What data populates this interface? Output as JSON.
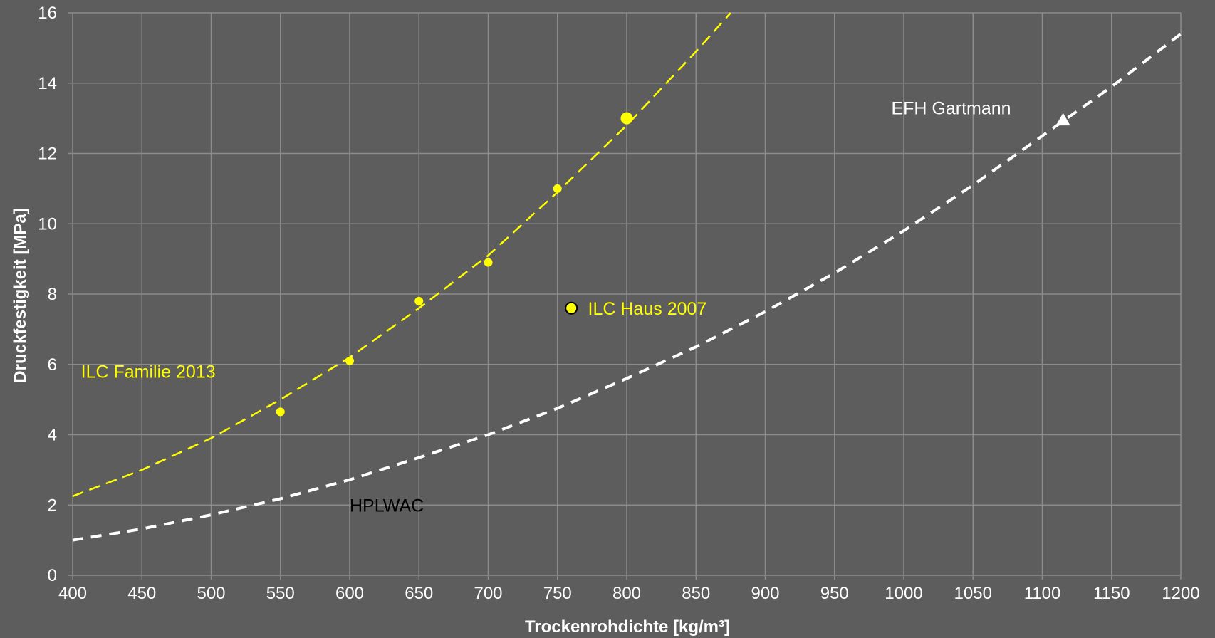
{
  "chart_data": {
    "type": "scatter",
    "title": "",
    "xlabel": "Trockenrohdichte [kg/m³]",
    "ylabel": "Druckfestigkeit [MPa]",
    "xlim": [
      400,
      1200
    ],
    "ylim": [
      0,
      16
    ],
    "xticks": [
      "400",
      "450",
      "500",
      "550",
      "600",
      "650",
      "700",
      "750",
      "800",
      "850",
      "900",
      "950",
      "1000",
      "1050",
      "1100",
      "1150",
      "1200"
    ],
    "yticks": [
      "0",
      "2",
      "4",
      "6",
      "8",
      "10",
      "12",
      "14",
      "16"
    ],
    "grid": true,
    "legend": "none",
    "colors": {
      "background": "#5d5d5d",
      "grid": "#8c8c8c",
      "ilc": "#ffff00",
      "hplwac": "#ffffff"
    },
    "series": [
      {
        "name": "ILC Familie 2013",
        "kind": "points",
        "marker": "circle",
        "points": [
          {
            "x": 550,
            "y": 4.65
          },
          {
            "x": 600,
            "y": 6.1
          },
          {
            "x": 650,
            "y": 7.8
          },
          {
            "x": 700,
            "y": 8.9
          },
          {
            "x": 750,
            "y": 11.0
          },
          {
            "x": 800,
            "y": 13.0
          }
        ]
      },
      {
        "name": "ILC Familie 2013",
        "kind": "trendline",
        "style": "dashed",
        "points": [
          {
            "x": 400,
            "y": 2.25
          },
          {
            "x": 450,
            "y": 3.0
          },
          {
            "x": 500,
            "y": 3.9
          },
          {
            "x": 550,
            "y": 5.0
          },
          {
            "x": 600,
            "y": 6.2
          },
          {
            "x": 650,
            "y": 7.6
          },
          {
            "x": 700,
            "y": 9.1
          },
          {
            "x": 750,
            "y": 10.9
          },
          {
            "x": 800,
            "y": 12.8
          },
          {
            "x": 850,
            "y": 14.9
          },
          {
            "x": 875,
            "y": 16.0
          }
        ]
      },
      {
        "name": "ILC Haus 2007",
        "kind": "points",
        "marker": "circle-outlined",
        "points": [
          {
            "x": 760,
            "y": 7.6
          }
        ]
      },
      {
        "name": "HPLWAC",
        "kind": "trendline",
        "style": "dashed",
        "points": [
          {
            "x": 400,
            "y": 1.0
          },
          {
            "x": 450,
            "y": 1.32
          },
          {
            "x": 500,
            "y": 1.72
          },
          {
            "x": 550,
            "y": 2.18
          },
          {
            "x": 600,
            "y": 2.72
          },
          {
            "x": 650,
            "y": 3.35
          },
          {
            "x": 700,
            "y": 4.0
          },
          {
            "x": 750,
            "y": 4.75
          },
          {
            "x": 800,
            "y": 5.6
          },
          {
            "x": 850,
            "y": 6.5
          },
          {
            "x": 900,
            "y": 7.5
          },
          {
            "x": 950,
            "y": 8.6
          },
          {
            "x": 1000,
            "y": 9.8
          },
          {
            "x": 1050,
            "y": 11.1
          },
          {
            "x": 1100,
            "y": 12.5
          },
          {
            "x": 1150,
            "y": 13.9
          },
          {
            "x": 1200,
            "y": 15.4
          }
        ]
      },
      {
        "name": "EFH Gartmann",
        "kind": "points",
        "marker": "triangle",
        "points": [
          {
            "x": 1115,
            "y": 12.95
          }
        ]
      }
    ],
    "annotations": [
      {
        "text": "ILC Familie 2013",
        "x": 406,
        "y": 5.8,
        "color": "#ffff00"
      },
      {
        "text": "ILC Haus 2007",
        "x": 772,
        "y": 7.6,
        "color": "#ffff00"
      },
      {
        "text": "HPLWAC",
        "x": 600,
        "y": 2.0,
        "color": "#000000"
      },
      {
        "text": "EFH Gartmann",
        "x": 991,
        "y": 13.3,
        "color": "#ffffff"
      }
    ]
  }
}
